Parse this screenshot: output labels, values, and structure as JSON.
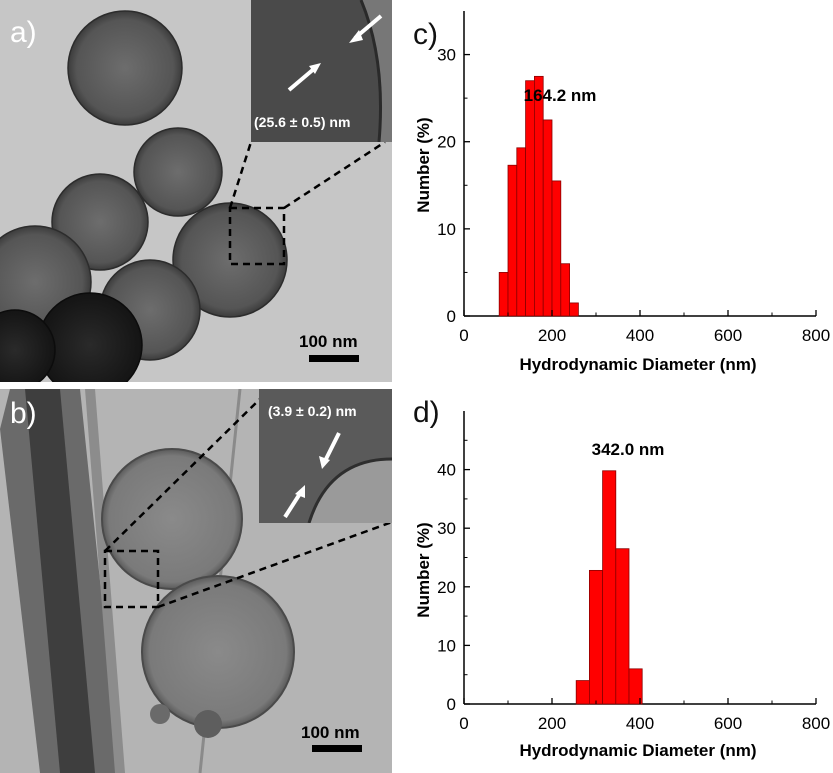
{
  "panel_a": {
    "letter": "a)",
    "scale_label": "100 nm",
    "inset_label": "(25.6 ± 0.5) nm"
  },
  "panel_b": {
    "letter": "b)",
    "scale_label": "100 nm",
    "inset_label": "(3.9 ± 0.2) nm"
  },
  "panel_c": {
    "letter": "c)"
  },
  "panel_d": {
    "letter": "d)"
  },
  "colors": {
    "bar_fill": "#ff0000",
    "bar_edge": "#8a0000"
  },
  "chart_data": [
    {
      "type": "bar",
      "panel": "c)",
      "annotation": "164.2 nm",
      "xlabel": "Hydrodynamic Diameter (nm)",
      "ylabel": "Number (%)",
      "xlim": [
        0,
        800
      ],
      "ylim": [
        0,
        35
      ],
      "xticks": [
        0,
        200,
        400,
        600,
        800
      ],
      "yticks": [
        0,
        10,
        20,
        30
      ],
      "bin_width": 20,
      "x": [
        90,
        110,
        130,
        150,
        170,
        190,
        210,
        230,
        250,
        270
      ],
      "values": [
        5,
        17.3,
        19.3,
        27,
        27.5,
        22.5,
        15.5,
        6,
        1.5,
        0
      ],
      "grid": false
    },
    {
      "type": "bar",
      "panel": "d)",
      "annotation": "342.0 nm",
      "xlabel": "Hydrodynamic Diameter (nm)",
      "ylabel": "Number (%)",
      "xlim": [
        0,
        800
      ],
      "ylim": [
        0,
        50
      ],
      "xticks": [
        0,
        200,
        400,
        600,
        800
      ],
      "yticks": [
        0,
        10,
        20,
        30,
        40
      ],
      "bin_width": 30,
      "x": [
        270,
        300,
        330,
        360,
        390
      ],
      "values": [
        4,
        22.8,
        39.8,
        26.5,
        6
      ],
      "grid": false
    }
  ]
}
